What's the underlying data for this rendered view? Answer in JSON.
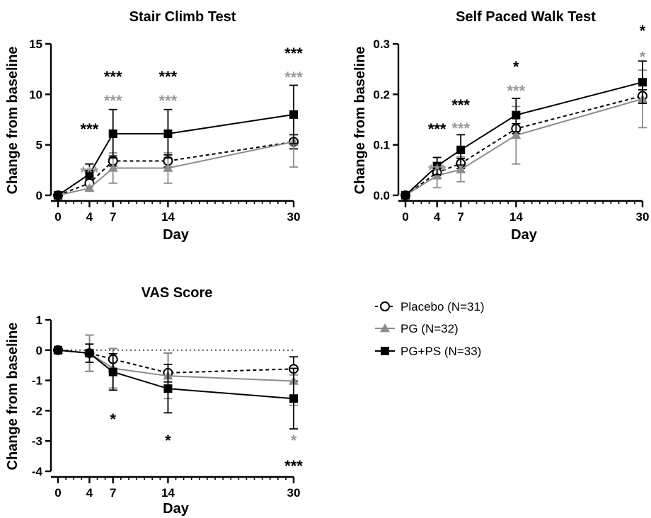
{
  "chart_data": [
    {
      "type": "line",
      "title": "Stair Climb Test",
      "xlabel": "Day",
      "ylabel": "Change from baseline",
      "x": [
        0,
        4,
        7,
        14,
        30
      ],
      "xticks": [
        "0",
        "4",
        "7",
        "14",
        "30"
      ],
      "xlim": [
        0,
        30
      ],
      "ylim": [
        0,
        15
      ],
      "yticks": [
        "0",
        "5",
        "10",
        "15"
      ],
      "grid": false,
      "series": [
        {
          "name": "Placebo (N=31)",
          "values": [
            0,
            1.2,
            3.4,
            3.4,
            5.3
          ],
          "err_up": [
            0,
            0.2,
            0.5,
            0.6,
            0.7
          ],
          "err_down": [
            0,
            0.2,
            0.5,
            0.6,
            0.7
          ]
        },
        {
          "name": "PG (N=32)",
          "values": [
            0,
            0.7,
            2.7,
            2.7,
            5.3
          ],
          "err_up": [
            0,
            0.2,
            1.5,
            1.5,
            2.5
          ],
          "err_down": [
            0,
            0.2,
            1.5,
            1.5,
            2.5
          ]
        },
        {
          "name": "PG+PS (N=33)",
          "values": [
            0,
            2.1,
            6.1,
            6.1,
            8.0
          ],
          "err_up": [
            0,
            1.0,
            2.4,
            2.4,
            2.9
          ],
          "err_down": [
            0,
            0.5,
            2.4,
            2.4,
            2.9
          ]
        }
      ],
      "annotations": [
        {
          "x": 4,
          "text": "***",
          "series": "PG+PS (N=33)"
        },
        {
          "x": 4,
          "text": "***",
          "series": "PG (N=32)"
        },
        {
          "x": 7,
          "text": "***",
          "series": "PG+PS (N=33)"
        },
        {
          "x": 7,
          "text": "***",
          "series": "PG (N=32)"
        },
        {
          "x": 14,
          "text": "***",
          "series": "PG+PS (N=33)"
        },
        {
          "x": 14,
          "text": "***",
          "series": "PG (N=32)"
        },
        {
          "x": 30,
          "text": "***",
          "series": "PG+PS (N=33)"
        },
        {
          "x": 30,
          "text": "***",
          "series": "PG (N=32)"
        }
      ]
    },
    {
      "type": "line",
      "title": "Self Paced Walk Test",
      "xlabel": "Day",
      "ylabel": "Change from baseline",
      "x": [
        0,
        4,
        7,
        14,
        30
      ],
      "xticks": [
        "0",
        "4",
        "7",
        "14",
        "30"
      ],
      "xlim": [
        0,
        30
      ],
      "ylim": [
        0,
        0.3
      ],
      "yticks": [
        "0.0",
        "0.1",
        "0.2",
        "0.3"
      ],
      "grid": false,
      "series": [
        {
          "name": "Placebo (N=31)",
          "values": [
            0,
            0.045,
            0.063,
            0.132,
            0.197
          ],
          "err_up": [
            0,
            0.012,
            0.01,
            0.01,
            0.012
          ],
          "err_down": [
            0,
            0.012,
            0.01,
            0.01,
            0.012
          ]
        },
        {
          "name": "PG (N=32)",
          "values": [
            0,
            0.039,
            0.051,
            0.119,
            0.191
          ],
          "err_up": [
            0,
            0.015,
            0.025,
            0.057,
            0.057
          ],
          "err_down": [
            0,
            0.024,
            0.024,
            0.057,
            0.057
          ]
        },
        {
          "name": "PG+PS (N=33)",
          "values": [
            0,
            0.058,
            0.09,
            0.159,
            0.224
          ],
          "err_up": [
            0,
            0.017,
            0.03,
            0.033,
            0.042
          ],
          "err_down": [
            0,
            0.017,
            0.03,
            0.033,
            0.042
          ]
        }
      ],
      "annotations": [
        {
          "x": 4,
          "text": "***",
          "series": "PG+PS (N=33)"
        },
        {
          "x": 4,
          "text": "***",
          "series": "PG (N=32)"
        },
        {
          "x": 7,
          "text": "***",
          "series": "PG+PS (N=33)"
        },
        {
          "x": 7,
          "text": "***",
          "series": "PG (N=32)"
        },
        {
          "x": 14,
          "text": "*",
          "series": "PG+PS (N=33)"
        },
        {
          "x": 14,
          "text": "***",
          "series": "PG (N=32)"
        },
        {
          "x": 30,
          "text": "*",
          "series": "PG+PS (N=33)"
        },
        {
          "x": 30,
          "text": "*",
          "series": "PG (N=32)"
        }
      ]
    },
    {
      "type": "line",
      "title": "VAS Score",
      "xlabel": "Day",
      "ylabel": "Change from baseline",
      "x": [
        0,
        4,
        7,
        14,
        30
      ],
      "xticks": [
        "0",
        "4",
        "7",
        "14",
        "30"
      ],
      "xlim": [
        0,
        30
      ],
      "ylim": [
        -4,
        1
      ],
      "yticks": [
        "1",
        "0",
        "-1",
        "-2",
        "-3",
        "-4"
      ],
      "grid": false,
      "reference_line": 0,
      "series": [
        {
          "name": "Placebo (N=31)",
          "values": [
            0,
            -0.1,
            -0.3,
            -0.75,
            -0.62
          ],
          "err_up": [
            0,
            0.6,
            0.35,
            0.65,
            0.4
          ],
          "err_down": [
            0,
            0.6,
            0.35,
            0.3,
            0.4
          ]
        },
        {
          "name": "PG (N=32)",
          "values": [
            0,
            -0.1,
            -0.6,
            -0.85,
            -1.02
          ],
          "err_up": [
            0,
            0.6,
            0.65,
            0.75,
            0.2
          ],
          "err_down": [
            0,
            0.6,
            0.65,
            0.75,
            0.8
          ]
        },
        {
          "name": "PG+PS (N=33)",
          "values": [
            0,
            -0.1,
            -0.72,
            -1.27,
            -1.6
          ],
          "err_up": [
            0,
            0.3,
            0.6,
            0.8,
            1.0
          ],
          "err_down": [
            0,
            0.3,
            0.6,
            0.8,
            1.0
          ]
        }
      ],
      "annotations": [
        {
          "x": 7,
          "text": "*",
          "series": "PG+PS (N=33)"
        },
        {
          "x": 14,
          "text": "*",
          "series": "PG+PS (N=33)"
        },
        {
          "x": 30,
          "text": "*",
          "series": "PG (N=32)"
        },
        {
          "x": 30,
          "text": "***",
          "series": "PG+PS (N=33)"
        }
      ]
    }
  ],
  "legend": {
    "placement": "right of VAS Score panel",
    "entries": [
      {
        "label": "Placebo  (N=31)",
        "marker": "open-circle",
        "line": "dashed",
        "color": "#000000"
      },
      {
        "label": "PG (N=32)",
        "marker": "triangle",
        "line": "solid",
        "color": "#8c8c8c"
      },
      {
        "label": "PG+PS (N=33)",
        "marker": "square",
        "line": "solid",
        "color": "#000000"
      }
    ]
  },
  "colors": {
    "placebo": "#000000",
    "pg": "#8c8c8c",
    "pgps": "#000000",
    "pg_stars": "#9a9a9a"
  }
}
